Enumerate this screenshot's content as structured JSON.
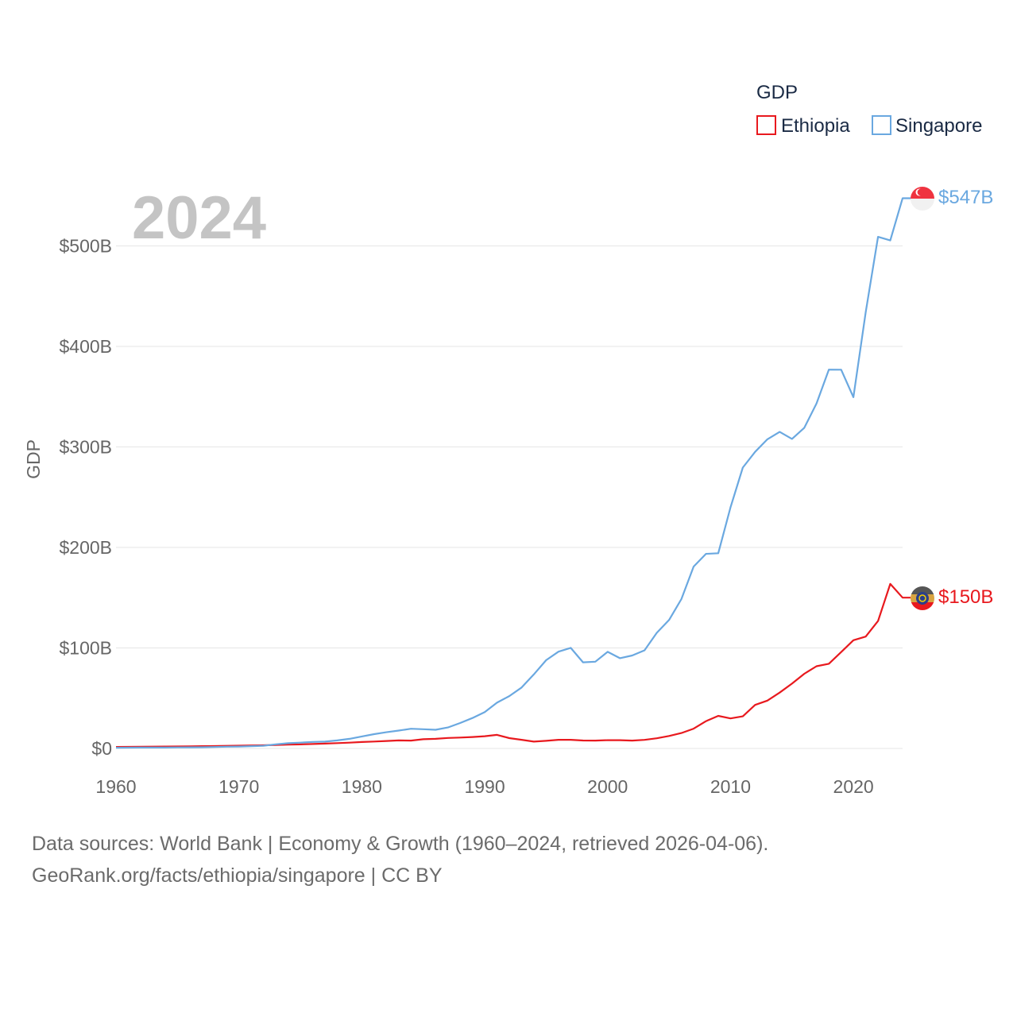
{
  "chart_data": {
    "type": "line",
    "title": "GDP",
    "ylabel": "GDP",
    "xlabel": "",
    "year_label": "2024",
    "xlim": [
      1960,
      2024
    ],
    "ylim": [
      0,
      547
    ],
    "x_ticks": [
      1960,
      1970,
      1980,
      1990,
      2000,
      2010,
      2020
    ],
    "x_tick_labels": [
      "1960",
      "1970",
      "1980",
      "1990",
      "2000",
      "2010",
      "2020"
    ],
    "y_ticks": [
      0,
      100,
      200,
      300,
      400,
      500
    ],
    "y_tick_labels": [
      "$0",
      "$100B",
      "$200B",
      "$300B",
      "$400B",
      "$500B"
    ],
    "legend": {
      "title": "GDP",
      "placement": "top-right",
      "entries": [
        "Ethiopia",
        "Singapore"
      ]
    },
    "x": [
      1960,
      1961,
      1962,
      1963,
      1964,
      1965,
      1966,
      1967,
      1968,
      1969,
      1970,
      1971,
      1972,
      1973,
      1974,
      1975,
      1976,
      1977,
      1978,
      1979,
      1980,
      1981,
      1982,
      1983,
      1984,
      1985,
      1986,
      1987,
      1988,
      1989,
      1990,
      1991,
      1992,
      1993,
      1994,
      1995,
      1996,
      1997,
      1998,
      1999,
      2000,
      2001,
      2002,
      2003,
      2004,
      2005,
      2006,
      2007,
      2008,
      2009,
      2010,
      2011,
      2012,
      2013,
      2014,
      2015,
      2016,
      2017,
      2018,
      2019,
      2020,
      2021,
      2022,
      2023,
      2024
    ],
    "series": [
      {
        "name": "Ethiopia",
        "color": "#e8191e",
        "end_label": "$150B",
        "flag": "ethiopia-flag-icon",
        "values": [
          1.5,
          1.6,
          1.7,
          1.8,
          1.9,
          2.0,
          2.1,
          2.3,
          2.4,
          2.6,
          2.8,
          3.0,
          3.2,
          3.5,
          3.8,
          4.0,
          4.4,
          4.8,
          5.3,
          5.8,
          6.4,
          6.9,
          7.4,
          8.0,
          7.8,
          9.2,
          9.6,
          10.4,
          10.8,
          11.4,
          12.2,
          13.5,
          10.3,
          8.6,
          6.8,
          7.6,
          8.6,
          8.6,
          7.9,
          7.8,
          8.2,
          8.2,
          7.8,
          8.5,
          10.1,
          12.4,
          15.3,
          19.7,
          27.1,
          32.4,
          29.9,
          31.9,
          43.3,
          47.6,
          55.6,
          64.5,
          74.3,
          81.8,
          84.3,
          95.9,
          107.7,
          111.3,
          126.8,
          163.7,
          150.0
        ]
      },
      {
        "name": "Singapore",
        "color": "#6aa8e0",
        "end_label": "$547B",
        "flag": "singapore-flag-icon",
        "values": [
          0.7,
          0.8,
          0.9,
          0.9,
          0.9,
          1.0,
          1.1,
          1.2,
          1.4,
          1.7,
          1.9,
          2.3,
          2.7,
          4.1,
          5.2,
          5.8,
          6.5,
          6.8,
          8.0,
          9.6,
          11.9,
          14.2,
          16.1,
          17.8,
          19.6,
          19.1,
          18.6,
          20.9,
          25.3,
          30.3,
          36.2,
          45.5,
          52.1,
          60.6,
          73.7,
          87.8,
          96.3,
          100.1,
          85.7,
          86.3,
          96.1,
          89.8,
          92.5,
          97.6,
          115.0,
          127.8,
          148.6,
          180.9,
          193.6,
          194.2,
          239.8,
          279.4,
          295.1,
          307.6,
          314.9,
          308.0,
          319.0,
          343.2,
          376.9,
          376.8,
          349.5,
          434.1,
          509.0,
          505.4,
          547.4
        ]
      }
    ]
  },
  "footer": {
    "line1": "Data sources: World Bank | Economy & Growth (1960–2024, retrieved 2026-04-06).",
    "line2": "GeoRank.org/facts/ethiopia/singapore | CC BY"
  }
}
